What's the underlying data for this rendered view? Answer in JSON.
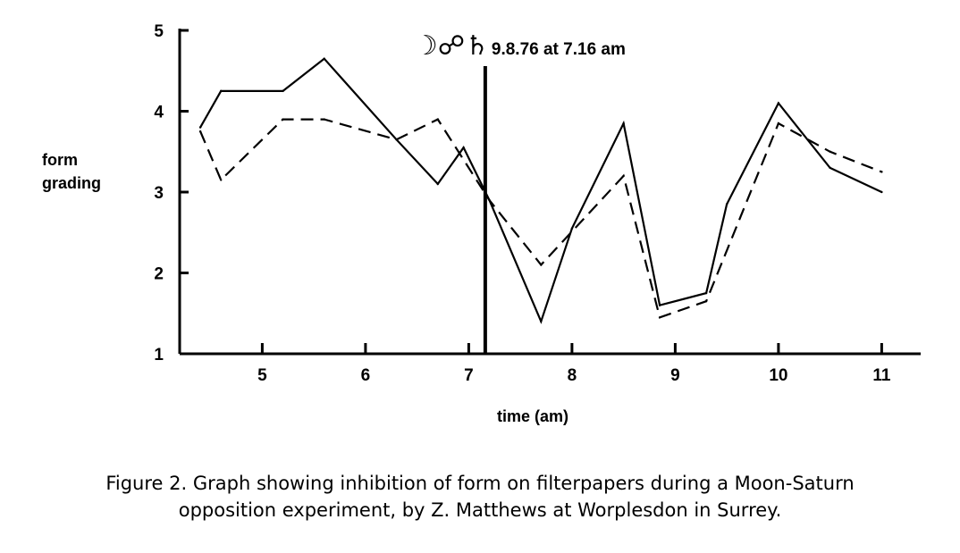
{
  "chart_data": {
    "type": "line",
    "title": "",
    "xlabel": "time (am)",
    "ylabel_lines": [
      "form",
      "grading"
    ],
    "xlim": [
      4.2,
      11.1
    ],
    "ylim": [
      1,
      5
    ],
    "x_ticks": [
      5,
      6,
      7,
      8,
      9,
      10,
      11
    ],
    "y_ticks": [
      1,
      2,
      3,
      4,
      5
    ],
    "grid": false,
    "series": [
      {
        "style": "solid",
        "points": [
          [
            4.4,
            3.8
          ],
          [
            4.6,
            4.25
          ],
          [
            5.2,
            4.25
          ],
          [
            5.6,
            4.65
          ],
          [
            6.3,
            3.65
          ],
          [
            6.7,
            3.1
          ],
          [
            6.95,
            3.55
          ],
          [
            7.2,
            2.9
          ],
          [
            7.7,
            1.4
          ],
          [
            8.0,
            2.55
          ],
          [
            8.5,
            3.85
          ],
          [
            8.85,
            1.6
          ],
          [
            9.3,
            1.75
          ],
          [
            9.5,
            2.85
          ],
          [
            10.0,
            4.1
          ],
          [
            10.5,
            3.3
          ],
          [
            11.0,
            3.0
          ]
        ]
      },
      {
        "style": "dashed",
        "points": [
          [
            4.4,
            3.75
          ],
          [
            4.6,
            3.15
          ],
          [
            5.2,
            3.9
          ],
          [
            5.6,
            3.9
          ],
          [
            6.3,
            3.65
          ],
          [
            6.7,
            3.9
          ],
          [
            7.2,
            2.9
          ],
          [
            7.7,
            2.1
          ],
          [
            8.5,
            3.2
          ],
          [
            8.85,
            1.45
          ],
          [
            9.3,
            1.65
          ],
          [
            10.0,
            3.85
          ],
          [
            10.5,
            3.5
          ],
          [
            11.0,
            3.25
          ]
        ]
      }
    ],
    "event_marker": {
      "x": 7.16,
      "symbols": "☽☍♄",
      "label": "9.8.76 at 7.16 am"
    }
  },
  "caption": {
    "line1": "Figure 2. Graph showing inhibition of form on filterpapers during a Moon-Saturn",
    "line2": "opposition experiment, by Z. Matthews at Worplesdon in Surrey."
  }
}
